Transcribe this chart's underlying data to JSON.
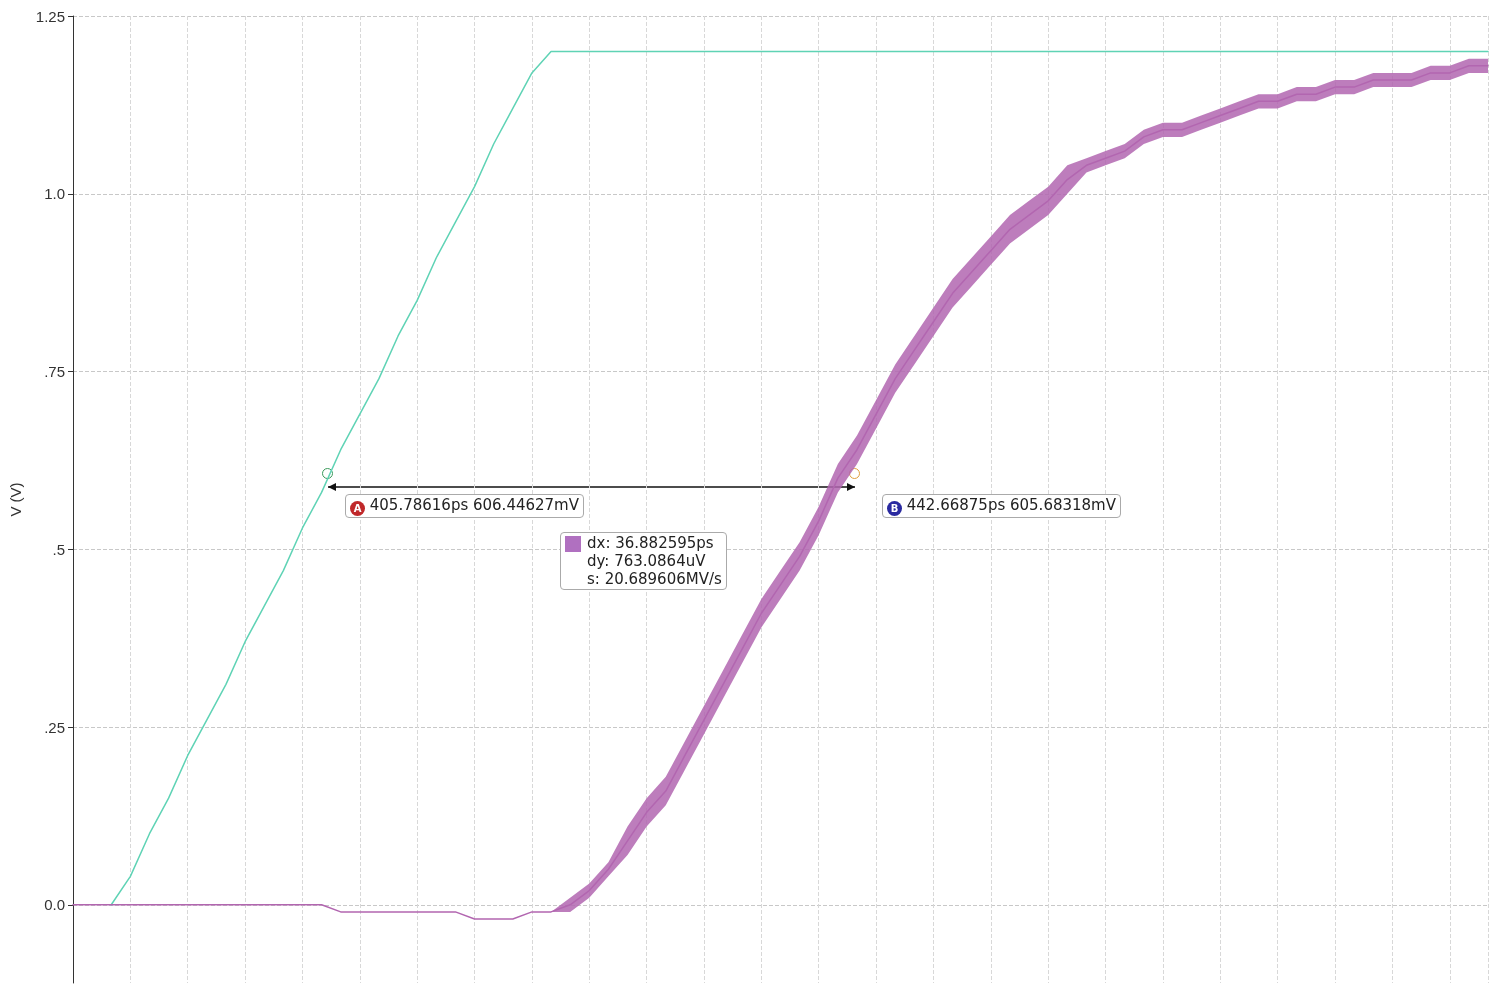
{
  "chart_data": {
    "type": "line",
    "ylabel": "V (V)",
    "categories": [
      null,
      null,
      null,
      null,
      null,
      null,
      null,
      null,
      null,
      null,
      null,
      null,
      null,
      null,
      null,
      null,
      null,
      null,
      null,
      null,
      null,
      null,
      null,
      null,
      null,
      null,
      null,
      null,
      null,
      null,
      null,
      null,
      null,
      null,
      null,
      null,
      null,
      null,
      null,
      null,
      null,
      null,
      null,
      null,
      null,
      null,
      null,
      null,
      null,
      null,
      null,
      null,
      null,
      null,
      null,
      null,
      null,
      null,
      null,
      null,
      null,
      null,
      null,
      null,
      null,
      null,
      null,
      null,
      null,
      null,
      null,
      null,
      null,
      null,
      null
    ],
    "series": [
      {
        "color": "#5fd3b5",
        "values": [
          null,
          null,
          0,
          0.04,
          0.1,
          0.15,
          0.21,
          0.26,
          0.31,
          0.37,
          0.42,
          0.47,
          0.53,
          0.58,
          0.64,
          0.69,
          0.74,
          0.8,
          0.85,
          0.91,
          0.96,
          1.01,
          1.07,
          1.12,
          1.17,
          1.2,
          1.2,
          1.2,
          1.2,
          1.2,
          1.2,
          1.2,
          1.2,
          1.2,
          1.2,
          1.2,
          1.2,
          1.2,
          1.2,
          1.2,
          1.2,
          1.2,
          1.2,
          1.2,
          1.2,
          1.2,
          1.2,
          1.2,
          1.2,
          1.2,
          1.2,
          1.2,
          1.2,
          1.2,
          1.2,
          1.2,
          1.2,
          1.2,
          1.2,
          1.2,
          1.2,
          1.2,
          1.2,
          1.2,
          1.2,
          1.2,
          1.2,
          1.2,
          1.2,
          1.2,
          1.2,
          1.2,
          1.2,
          1.2,
          1.2
        ]
      },
      {
        "color": "#b266b0",
        "values": [
          0,
          0,
          0,
          0,
          0,
          0,
          0,
          0,
          0,
          0,
          0,
          0,
          0,
          0,
          -0.01,
          -0.01,
          -0.01,
          -0.01,
          -0.01,
          -0.01,
          -0.01,
          -0.02,
          -0.02,
          -0.02,
          -0.01,
          -0.01,
          0,
          0.02,
          0.05,
          0.09,
          0.13,
          0.16,
          0.21,
          0.26,
          0.31,
          0.36,
          0.41,
          0.45,
          0.49,
          0.54,
          0.6,
          0.64,
          0.69,
          0.74,
          0.78,
          0.82,
          0.86,
          0.89,
          0.92,
          0.95,
          0.97,
          0.99,
          1.02,
          1.04,
          1.05,
          1.06,
          1.08,
          1.09,
          1.09,
          1.1,
          1.11,
          1.12,
          1.13,
          1.13,
          1.14,
          1.14,
          1.15,
          1.15,
          1.16,
          1.16,
          1.16,
          1.17,
          1.17,
          1.18,
          1.18
        ],
        "lower": [
          0,
          0,
          0,
          0,
          0,
          0,
          0,
          0,
          0,
          0,
          0,
          0,
          0,
          0,
          -0.01,
          -0.01,
          -0.01,
          -0.01,
          -0.01,
          -0.01,
          -0.01,
          -0.02,
          -0.02,
          -0.02,
          -0.01,
          -0.01,
          -0.01,
          0.01,
          0.04,
          0.07,
          0.11,
          0.14,
          0.19,
          0.24,
          0.29,
          0.34,
          0.39,
          0.43,
          0.47,
          0.52,
          0.58,
          0.62,
          0.67,
          0.72,
          0.76,
          0.8,
          0.84,
          0.87,
          0.9,
          0.93,
          0.95,
          0.97,
          1.0,
          1.03,
          1.04,
          1.05,
          1.07,
          1.08,
          1.08,
          1.09,
          1.1,
          1.11,
          1.12,
          1.12,
          1.13,
          1.13,
          1.14,
          1.14,
          1.15,
          1.15,
          1.15,
          1.16,
          1.16,
          1.17,
          1.17
        ],
        "upper": [
          0,
          0,
          0,
          0,
          0,
          0,
          0,
          0,
          0,
          0,
          0,
          0,
          0,
          0,
          -0.01,
          -0.01,
          -0.01,
          -0.01,
          -0.01,
          -0.01,
          -0.01,
          -0.02,
          -0.02,
          -0.02,
          -0.01,
          -0.01,
          0.01,
          0.03,
          0.06,
          0.11,
          0.15,
          0.18,
          0.23,
          0.28,
          0.33,
          0.38,
          0.43,
          0.47,
          0.51,
          0.56,
          0.62,
          0.66,
          0.71,
          0.76,
          0.8,
          0.84,
          0.88,
          0.91,
          0.94,
          0.97,
          0.99,
          1.01,
          1.04,
          1.05,
          1.06,
          1.07,
          1.09,
          1.1,
          1.1,
          1.11,
          1.12,
          1.13,
          1.14,
          1.14,
          1.15,
          1.15,
          1.16,
          1.16,
          1.17,
          1.17,
          1.17,
          1.18,
          1.18,
          1.19,
          1.19
        ]
      }
    ],
    "ylim": [
      -0.11,
      1.25
    ],
    "yticks": [
      {
        "value": 0,
        "label": "0.0"
      },
      {
        "value": 0.25,
        "label": ".25"
      },
      {
        "value": 0.5,
        "label": ".5"
      },
      {
        "value": 0.75,
        "label": ".75"
      },
      {
        "value": 1,
        "label": "1.0"
      },
      1.25
    ],
    "grid": true,
    "marker": "none",
    "line_style": "solid",
    "annotations": [
      "A",
      "405.78616ps 606.44627mV",
      "B",
      "442.66875ps 605.68318mV",
      "dx: 36.882595ps",
      "dy: 763.0864uV",
      "s: 20.689606MV/s"
    ]
  }
}
